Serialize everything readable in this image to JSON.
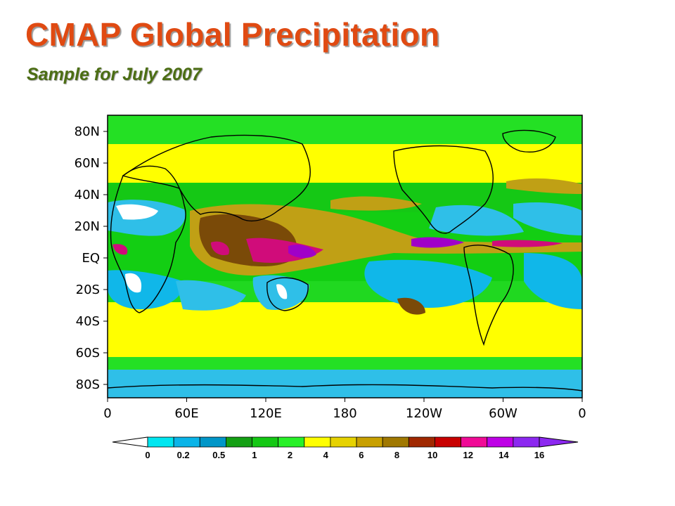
{
  "header": {
    "title": "CMAP Global Precipitation",
    "subtitle": "Sample for July 2007"
  },
  "map": {
    "lat_labels": [
      "80N",
      "60N",
      "40N",
      "20N",
      "EQ",
      "20S",
      "40S",
      "60S",
      "80S"
    ],
    "lon_labels": [
      "0",
      "60E",
      "120E",
      "180",
      "120W",
      "60W",
      "0"
    ],
    "colors": {
      "ocean_dry": "#2fbfe8",
      "ocean_deep": "#10b7e9",
      "land_dry": "#ffffff",
      "low": "#13ce13",
      "mid": "#ffff00",
      "high": "#c0a015",
      "very_high": "#7a4a08",
      "extreme": "#d00c7a",
      "max": "#a000c8",
      "coast": "#000000"
    }
  },
  "colorbar": {
    "labels": [
      "0",
      "0.2",
      "0.5",
      "1",
      "2",
      "4",
      "6",
      "8",
      "10",
      "12",
      "14",
      "16"
    ],
    "colors": [
      "#00e6f0",
      "#0ab4e8",
      "#0096c8",
      "#14a014",
      "#14c814",
      "#28f028",
      "#ffff00",
      "#e6d200",
      "#c8a000",
      "#a07800",
      "#a02800",
      "#c80000",
      "#f00a96",
      "#be00e6",
      "#8c28f0"
    ]
  }
}
